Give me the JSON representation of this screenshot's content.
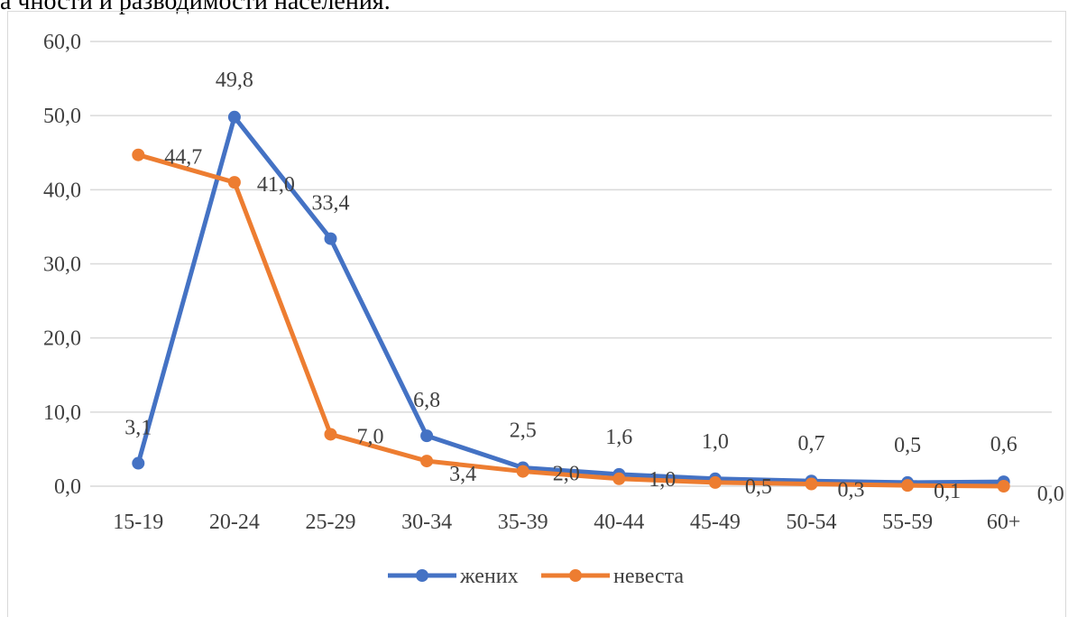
{
  "caption": "а чности и разводимости населения.",
  "chart_data": {
    "type": "line",
    "categories": [
      "15-19",
      "20-24",
      "25-29",
      "30-34",
      "35-39",
      "40-44",
      "45-49",
      "50-54",
      "55-59",
      "60+"
    ],
    "series": [
      {
        "name": "жених",
        "color": "#4472c4",
        "values": [
          3.1,
          49.8,
          33.4,
          6.8,
          2.5,
          1.6,
          1.0,
          0.7,
          0.5,
          0.6
        ],
        "labels": [
          "3,1",
          "49,8",
          "33,4",
          "6,8",
          "2,5",
          "1,6",
          "1,0",
          "0,7",
          "0,5",
          "0,6"
        ]
      },
      {
        "name": "невеста",
        "color": "#ed7d31",
        "values": [
          44.7,
          41.0,
          7.0,
          3.4,
          2.0,
          1.0,
          0.5,
          0.3,
          0.1,
          0.0
        ],
        "labels": [
          "44,7",
          "41,0",
          "7,0",
          "3,4",
          "2,0",
          "1,0",
          "0,5",
          "0,3",
          "0,1",
          "0,0"
        ]
      }
    ],
    "ylim": [
      0,
      60
    ],
    "yticks": [
      "0,0",
      "10,0",
      "20,0",
      "30,0",
      "40,0",
      "50,0",
      "60,0"
    ],
    "grid": true,
    "legend": "bottom"
  }
}
